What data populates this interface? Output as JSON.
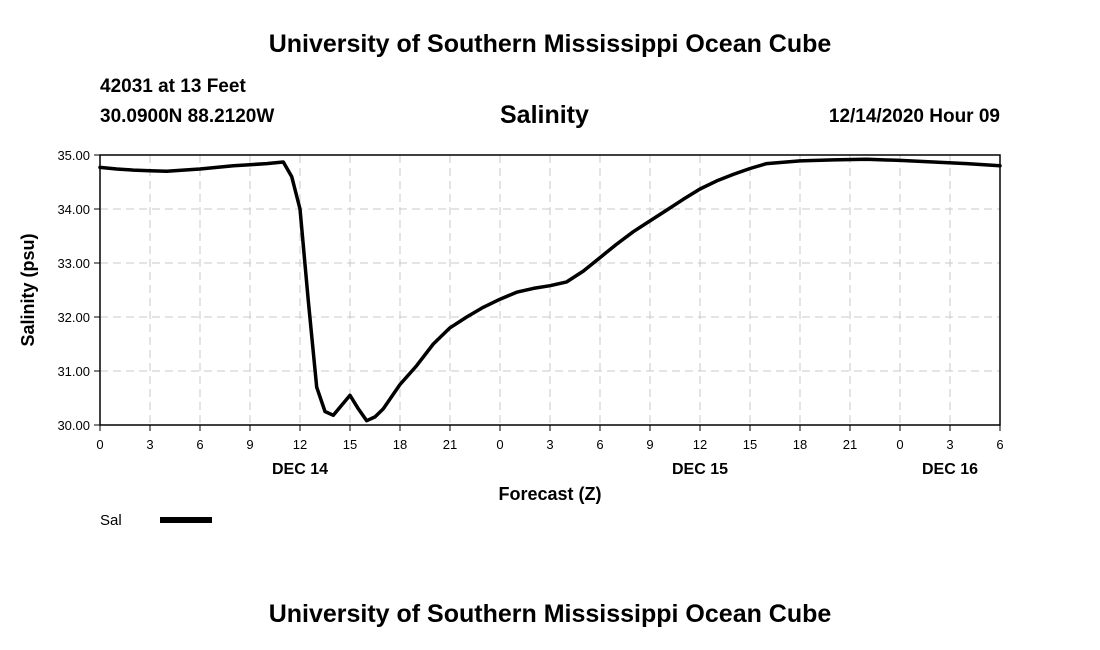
{
  "page": {
    "top_title": "University of Southern Mississippi Ocean Cube",
    "bottom_title": "University of Southern Mississippi Ocean Cube",
    "station": "42031 at 13 Feet",
    "location": "30.0900N 88.2120W",
    "datetime": "12/14/2020 Hour 09"
  },
  "chart_data": {
    "type": "line",
    "title": "Salinity",
    "xlabel": "Forecast (Z)",
    "ylabel": "Salinity (psu)",
    "xlim": [
      0,
      54
    ],
    "ylim": [
      30.0,
      35.0
    ],
    "y_ticks": [
      30.0,
      31.0,
      32.0,
      33.0,
      34.0,
      35.0
    ],
    "y_tick_labels": [
      "30.00",
      "31.00",
      "32.00",
      "33.00",
      "34.00",
      "35.00"
    ],
    "x_ticks": [
      0,
      3,
      6,
      9,
      12,
      15,
      18,
      21,
      24,
      27,
      30,
      33,
      36,
      39,
      42,
      45,
      48,
      51,
      54
    ],
    "x_tick_labels": [
      "0",
      "3",
      "6",
      "9",
      "12",
      "15",
      "18",
      "21",
      "0",
      "3",
      "6",
      "9",
      "12",
      "15",
      "18",
      "21",
      "0",
      "3",
      "6"
    ],
    "day_labels": [
      {
        "label": "DEC 14",
        "x": 12
      },
      {
        "label": "DEC 15",
        "x": 36
      },
      {
        "label": "DEC 16",
        "x": 51
      }
    ],
    "grid": true,
    "legend": {
      "position": "bottom-left",
      "entries": [
        "Sal"
      ]
    },
    "series": [
      {
        "name": "Sal",
        "color": "#000000",
        "x": [
          0,
          1,
          2,
          3,
          4,
          5,
          6,
          7,
          8,
          9,
          10,
          11,
          11.5,
          12,
          12.5,
          13,
          13.5,
          14,
          15,
          15.5,
          16,
          16.5,
          17,
          18,
          19,
          20,
          21,
          22,
          23,
          24,
          25,
          26,
          27,
          28,
          29,
          30,
          31,
          32,
          33,
          34,
          35,
          36,
          37,
          38,
          39,
          40,
          42,
          44,
          46,
          48,
          50,
          52,
          54
        ],
        "values": [
          34.77,
          34.74,
          34.72,
          34.71,
          34.7,
          34.72,
          34.74,
          34.77,
          34.8,
          34.82,
          34.84,
          34.87,
          34.6,
          34.0,
          32.3,
          30.7,
          30.25,
          30.18,
          30.55,
          30.3,
          30.08,
          30.15,
          30.3,
          30.75,
          31.1,
          31.5,
          31.8,
          32.0,
          32.18,
          32.33,
          32.46,
          32.53,
          32.58,
          32.65,
          32.85,
          33.1,
          33.35,
          33.58,
          33.78,
          33.98,
          34.18,
          34.37,
          34.52,
          34.64,
          34.75,
          34.84,
          34.89,
          34.91,
          34.92,
          34.9,
          34.87,
          34.84,
          34.8
        ]
      }
    ]
  }
}
